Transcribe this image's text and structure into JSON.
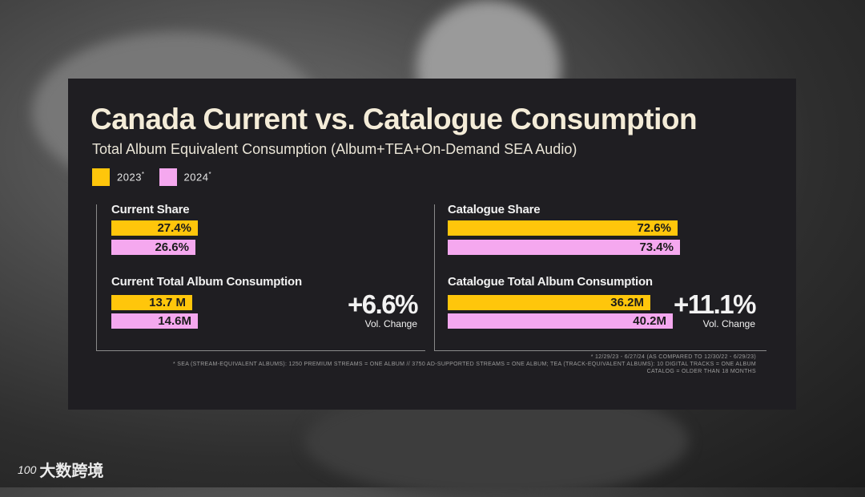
{
  "title": "Canada Current vs. Catalogue Consumption",
  "subtitle": "Total Album Equivalent Consumption (Album+TEA+On-Demand SEA Audio)",
  "colors": {
    "y2023": "#ffc60b",
    "y2024": "#f5a8ef",
    "card": "#1f1e22"
  },
  "legend": [
    {
      "label": "2023",
      "sup": "*",
      "color": "#ffc60b"
    },
    {
      "label": "2024",
      "sup": "*",
      "color": "#f5a8ef"
    }
  ],
  "chart_data": [
    {
      "type": "bar",
      "title": "Current Share",
      "categories": [
        "2023*",
        "2024*"
      ],
      "values": [
        27.4,
        26.6
      ],
      "labels": [
        "27.4%",
        "26.6%"
      ],
      "unit": "%"
    },
    {
      "type": "bar",
      "title": "Catalogue Share",
      "categories": [
        "2023*",
        "2024*"
      ],
      "values": [
        72.6,
        73.4
      ],
      "labels": [
        "72.6%",
        "73.4%"
      ],
      "unit": "%"
    },
    {
      "type": "bar",
      "title": "Current Total Album Consumption",
      "categories": [
        "2023*",
        "2024*"
      ],
      "values": [
        13.7,
        14.6
      ],
      "labels": [
        "13.7 M",
        "14.6M"
      ],
      "unit": "M",
      "change": "+6.6%",
      "change_label": "Vol. Change"
    },
    {
      "type": "bar",
      "title": "Catalogue Total Album Consumption",
      "categories": [
        "2023*",
        "2024*"
      ],
      "values": [
        36.2,
        40.2
      ],
      "labels": [
        "36.2M",
        "40.2M"
      ],
      "unit": "M",
      "change": "+11.1%",
      "change_label": "Vol. Change"
    }
  ],
  "footnotes": [
    "* 12/29/23 - 6/27/24 (AS COMPARED TO 12/30/22 - 6/29/23)",
    "* SEA (STREAM-EQUIVALENT ALBUMS): 1250 PREMIUM STREAMS = ONE ALBUM // 3750 AD-SUPPORTED STREAMS = ONE ALBUM; TEA (TRACK-EQUIVALENT ALBUMS): 10 DIGITAL TRACKS = ONE ALBUM",
    "CATALOG = OLDER THAN 18 MONTHS"
  ],
  "watermark": {
    "logo": "100",
    "text": "大数跨境"
  }
}
